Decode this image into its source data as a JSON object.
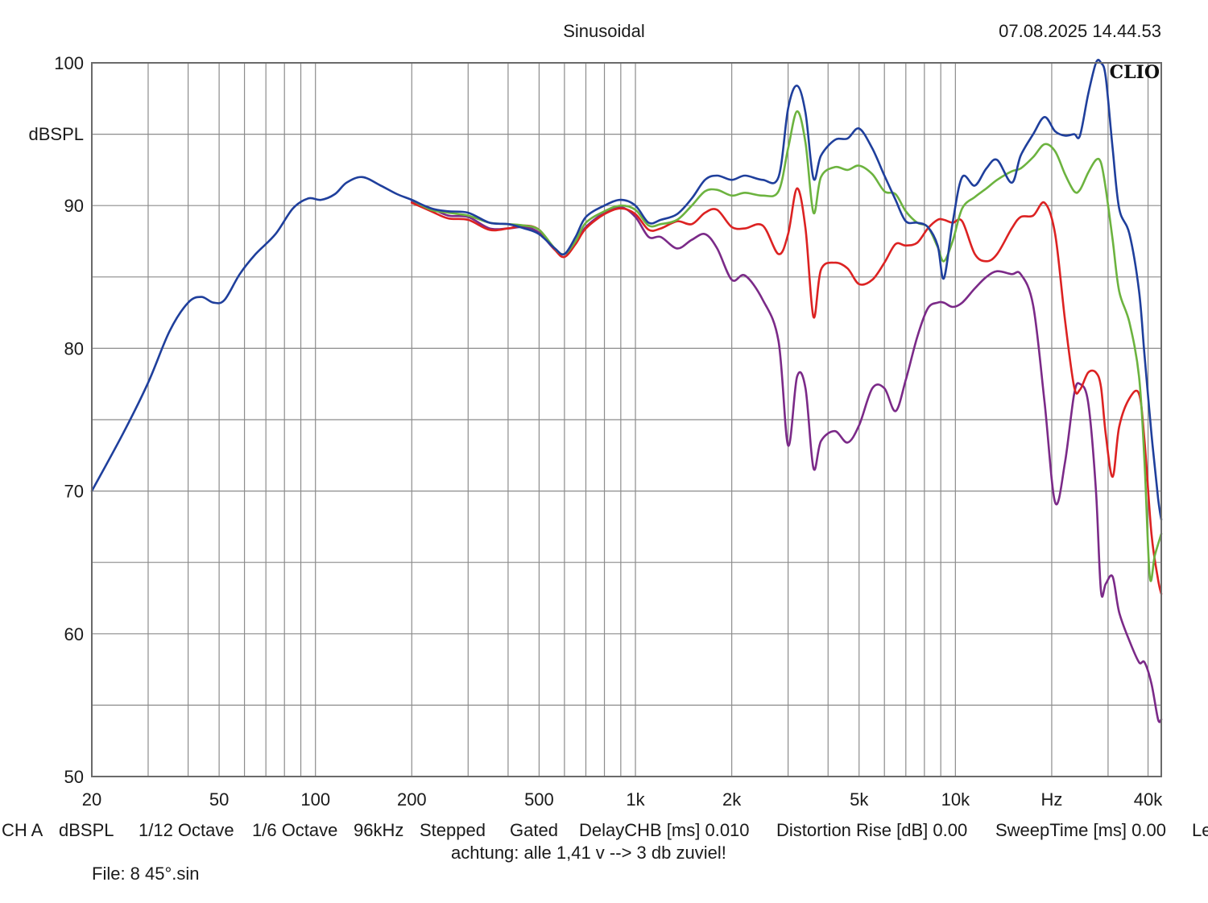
{
  "chart_data": {
    "type": "line",
    "title": "Sinusoidal",
    "timestamp": "07.08.2025 14.44.53",
    "brand": "CLIO",
    "ylabel": "dBSPL",
    "ylim": [
      50,
      100
    ],
    "xlim": [
      20,
      44000
    ],
    "x_scale": "log",
    "y_ticks": [
      {
        "value": 100,
        "label": "100"
      },
      {
        "value": 90,
        "label": "90"
      },
      {
        "value": 80,
        "label": "80"
      },
      {
        "value": 70,
        "label": "70"
      },
      {
        "value": 60,
        "label": "60"
      },
      {
        "value": 50,
        "label": "50"
      }
    ],
    "x_ticks": [
      {
        "value": 20,
        "label": "20"
      },
      {
        "value": 50,
        "label": "50"
      },
      {
        "value": 100,
        "label": "100"
      },
      {
        "value": 200,
        "label": "200"
      },
      {
        "value": 500,
        "label": "500"
      },
      {
        "value": 1000,
        "label": "1k"
      },
      {
        "value": 2000,
        "label": "2k"
      },
      {
        "value": 5000,
        "label": "5k"
      },
      {
        "value": 10000,
        "label": "10k"
      },
      {
        "value": 20000,
        "label": "Hz"
      },
      {
        "value": 40000,
        "label": "40k"
      }
    ],
    "series": [
      {
        "name": "blue",
        "color": "#1f3f9c",
        "points": [
          [
            20,
            70
          ],
          [
            25,
            74
          ],
          [
            30,
            77.6
          ],
          [
            35,
            81.2
          ],
          [
            40,
            83.2
          ],
          [
            44,
            83.6
          ],
          [
            48,
            83.2
          ],
          [
            52,
            83.4
          ],
          [
            58,
            85.2
          ],
          [
            65,
            86.6
          ],
          [
            75,
            88
          ],
          [
            85,
            89.8
          ],
          [
            95,
            90.5
          ],
          [
            104,
            90.4
          ],
          [
            115,
            90.8
          ],
          [
            125,
            91.6
          ],
          [
            140,
            92
          ],
          [
            160,
            91.4
          ],
          [
            180,
            90.8
          ],
          [
            200,
            90.4
          ],
          [
            230,
            89.8
          ],
          [
            260,
            89.6
          ],
          [
            300,
            89.5
          ],
          [
            350,
            88.8
          ],
          [
            400,
            88.7
          ],
          [
            450,
            88.4
          ],
          [
            500,
            88
          ],
          [
            560,
            87
          ],
          [
            600,
            86.6
          ],
          [
            650,
            87.8
          ],
          [
            700,
            89.2
          ],
          [
            800,
            90
          ],
          [
            900,
            90.4
          ],
          [
            1000,
            90
          ],
          [
            1100,
            88.8
          ],
          [
            1200,
            89
          ],
          [
            1350,
            89.4
          ],
          [
            1500,
            90.5
          ],
          [
            1650,
            91.8
          ],
          [
            1800,
            92.1
          ],
          [
            2000,
            91.8
          ],
          [
            2200,
            92.1
          ],
          [
            2500,
            91.8
          ],
          [
            2800,
            92
          ],
          [
            3000,
            96.8
          ],
          [
            3200,
            98.4
          ],
          [
            3400,
            96.5
          ],
          [
            3600,
            91.9
          ],
          [
            3800,
            93.5
          ],
          [
            4200,
            94.6
          ],
          [
            4600,
            94.7
          ],
          [
            5000,
            95.4
          ],
          [
            5500,
            94
          ],
          [
            6000,
            92.1
          ],
          [
            6500,
            90.4
          ],
          [
            7000,
            88.9
          ],
          [
            7600,
            88.8
          ],
          [
            8200,
            88.5
          ],
          [
            8800,
            87.2
          ],
          [
            9200,
            84.9
          ],
          [
            9800,
            88.8
          ],
          [
            10500,
            92
          ],
          [
            11500,
            91.4
          ],
          [
            12500,
            92.6
          ],
          [
            13500,
            93.2
          ],
          [
            15000,
            91.6
          ],
          [
            16000,
            93.5
          ],
          [
            17500,
            95
          ],
          [
            19000,
            96.2
          ],
          [
            20500,
            95.2
          ],
          [
            22000,
            94.9
          ],
          [
            23500,
            95
          ],
          [
            24500,
            94.9
          ],
          [
            26000,
            97.8
          ],
          [
            27500,
            100
          ],
          [
            28500,
            100
          ],
          [
            29500,
            99
          ],
          [
            31000,
            94
          ],
          [
            32500,
            89.8
          ],
          [
            35000,
            88
          ],
          [
            37500,
            84
          ],
          [
            39000,
            79.5
          ],
          [
            41000,
            74
          ],
          [
            43000,
            69.5
          ],
          [
            44000,
            68
          ]
        ]
      },
      {
        "name": "green",
        "color": "#6cb33f",
        "points": [
          [
            200,
            90.4
          ],
          [
            230,
            89.7
          ],
          [
            260,
            89.5
          ],
          [
            300,
            89.3
          ],
          [
            350,
            88.8
          ],
          [
            400,
            88.7
          ],
          [
            450,
            88.6
          ],
          [
            500,
            88.3
          ],
          [
            560,
            87
          ],
          [
            600,
            86.6
          ],
          [
            650,
            87.5
          ],
          [
            700,
            88.8
          ],
          [
            800,
            89.6
          ],
          [
            900,
            90
          ],
          [
            1000,
            89.7
          ],
          [
            1100,
            88.6
          ],
          [
            1200,
            88.7
          ],
          [
            1350,
            89
          ],
          [
            1500,
            90
          ],
          [
            1650,
            91
          ],
          [
            1800,
            91.1
          ],
          [
            2000,
            90.7
          ],
          [
            2200,
            90.9
          ],
          [
            2500,
            90.7
          ],
          [
            2800,
            91
          ],
          [
            3000,
            94
          ],
          [
            3200,
            96.6
          ],
          [
            3400,
            94.4
          ],
          [
            3600,
            89.5
          ],
          [
            3800,
            92
          ],
          [
            4200,
            92.7
          ],
          [
            4600,
            92.5
          ],
          [
            5000,
            92.8
          ],
          [
            5500,
            92.2
          ],
          [
            6000,
            91
          ],
          [
            6500,
            90.8
          ],
          [
            7000,
            89.6
          ],
          [
            7600,
            88.8
          ],
          [
            8200,
            88.5
          ],
          [
            8800,
            87.1
          ],
          [
            9200,
            86.1
          ],
          [
            9800,
            87.5
          ],
          [
            10500,
            89.8
          ],
          [
            11500,
            90.6
          ],
          [
            12500,
            91.2
          ],
          [
            13500,
            91.8
          ],
          [
            15000,
            92.4
          ],
          [
            16000,
            92.6
          ],
          [
            17500,
            93.4
          ],
          [
            19000,
            94.3
          ],
          [
            20500,
            93.8
          ],
          [
            22000,
            92.2
          ],
          [
            23500,
            91
          ],
          [
            24500,
            91.1
          ],
          [
            26000,
            92.3
          ],
          [
            27500,
            93.2
          ],
          [
            28500,
            93
          ],
          [
            29500,
            91.2
          ],
          [
            31000,
            87.6
          ],
          [
            32500,
            84
          ],
          [
            35000,
            81.8
          ],
          [
            37500,
            78
          ],
          [
            39000,
            72
          ],
          [
            40500,
            64
          ],
          [
            42000,
            65.5
          ],
          [
            44000,
            67
          ]
        ]
      },
      {
        "name": "red",
        "color": "#dc2222",
        "points": [
          [
            200,
            90.2
          ],
          [
            230,
            89.6
          ],
          [
            260,
            89.1
          ],
          [
            300,
            89
          ],
          [
            350,
            88.3
          ],
          [
            400,
            88.4
          ],
          [
            450,
            88.6
          ],
          [
            500,
            88.3
          ],
          [
            560,
            86.9
          ],
          [
            600,
            86.4
          ],
          [
            650,
            87.3
          ],
          [
            700,
            88.4
          ],
          [
            800,
            89.4
          ],
          [
            900,
            89.8
          ],
          [
            1000,
            89.4
          ],
          [
            1100,
            88.3
          ],
          [
            1200,
            88.4
          ],
          [
            1350,
            88.9
          ],
          [
            1500,
            88.7
          ],
          [
            1650,
            89.5
          ],
          [
            1800,
            89.7
          ],
          [
            2000,
            88.5
          ],
          [
            2200,
            88.4
          ],
          [
            2500,
            88.6
          ],
          [
            2800,
            86.6
          ],
          [
            3000,
            88
          ],
          [
            3200,
            91.2
          ],
          [
            3400,
            88.4
          ],
          [
            3600,
            82.2
          ],
          [
            3800,
            85.5
          ],
          [
            4200,
            86
          ],
          [
            4600,
            85.6
          ],
          [
            5000,
            84.5
          ],
          [
            5500,
            84.8
          ],
          [
            6000,
            86
          ],
          [
            6500,
            87.3
          ],
          [
            7000,
            87.2
          ],
          [
            7600,
            87.4
          ],
          [
            8200,
            88.4
          ],
          [
            8800,
            89
          ],
          [
            9200,
            89
          ],
          [
            9800,
            88.8
          ],
          [
            10500,
            88.9
          ],
          [
            11500,
            86.6
          ],
          [
            12500,
            86.1
          ],
          [
            13500,
            86.6
          ],
          [
            15000,
            88.4
          ],
          [
            16000,
            89.2
          ],
          [
            17500,
            89.3
          ],
          [
            19000,
            90.2
          ],
          [
            20500,
            88
          ],
          [
            22000,
            82
          ],
          [
            23500,
            77.3
          ],
          [
            24500,
            77.1
          ],
          [
            26000,
            78.3
          ],
          [
            27500,
            78.3
          ],
          [
            28500,
            77.3
          ],
          [
            29500,
            74
          ],
          [
            31000,
            71
          ],
          [
            32500,
            74.5
          ],
          [
            35000,
            76.5
          ],
          [
            37500,
            76.8
          ],
          [
            39000,
            73.5
          ],
          [
            41000,
            67
          ],
          [
            43000,
            63.8
          ],
          [
            44000,
            62.8
          ]
        ]
      },
      {
        "name": "purple",
        "color": "#7b2a88",
        "points": [
          [
            200,
            90.3
          ],
          [
            230,
            89.8
          ],
          [
            260,
            89.3
          ],
          [
            300,
            89.2
          ],
          [
            350,
            88.4
          ],
          [
            400,
            88.4
          ],
          [
            450,
            88.5
          ],
          [
            500,
            88.1
          ],
          [
            560,
            86.9
          ],
          [
            600,
            86.6
          ],
          [
            650,
            87.4
          ],
          [
            700,
            88.5
          ],
          [
            800,
            89.5
          ],
          [
            900,
            89.9
          ],
          [
            1000,
            89.2
          ],
          [
            1100,
            87.8
          ],
          [
            1200,
            87.8
          ],
          [
            1350,
            87
          ],
          [
            1500,
            87.6
          ],
          [
            1650,
            88
          ],
          [
            1800,
            87
          ],
          [
            2000,
            84.8
          ],
          [
            2200,
            85.1
          ],
          [
            2500,
            83.4
          ],
          [
            2800,
            80.5
          ],
          [
            3000,
            73.2
          ],
          [
            3200,
            78
          ],
          [
            3400,
            77.2
          ],
          [
            3600,
            71.6
          ],
          [
            3800,
            73.5
          ],
          [
            4200,
            74.2
          ],
          [
            4600,
            73.4
          ],
          [
            5000,
            74.6
          ],
          [
            5500,
            77.2
          ],
          [
            6000,
            77.2
          ],
          [
            6500,
            75.6
          ],
          [
            7000,
            77.8
          ],
          [
            7600,
            80.8
          ],
          [
            8200,
            82.8
          ],
          [
            8800,
            83.2
          ],
          [
            9200,
            83.2
          ],
          [
            9800,
            82.9
          ],
          [
            10500,
            83.2
          ],
          [
            11500,
            84.2
          ],
          [
            12500,
            85
          ],
          [
            13500,
            85.4
          ],
          [
            15000,
            85.2
          ],
          [
            16000,
            85.2
          ],
          [
            17500,
            83
          ],
          [
            19000,
            76.2
          ],
          [
            20500,
            69.2
          ],
          [
            22000,
            72
          ],
          [
            23500,
            76.8
          ],
          [
            24500,
            77.5
          ],
          [
            26000,
            76.2
          ],
          [
            27500,
            70
          ],
          [
            28500,
            63
          ],
          [
            29500,
            63.5
          ],
          [
            31000,
            64
          ],
          [
            32500,
            61.5
          ],
          [
            35000,
            59.5
          ],
          [
            37500,
            58
          ],
          [
            39000,
            58
          ],
          [
            41000,
            56.5
          ],
          [
            43000,
            54
          ],
          [
            44000,
            54
          ]
        ]
      }
    ]
  },
  "footer": {
    "channel": "CH A",
    "unit": "dBSPL",
    "smoothing_a": "1/12 Octave",
    "smoothing_b": "1/6 Octave",
    "sample_rate": "96kHz",
    "mode_a": "Stepped",
    "mode_b": "Gated",
    "delay": "DelayCHB [ms] 0.010",
    "distortion": "Distortion Rise [dB] 0.00",
    "sweep": "SweepTime [ms] 0.00",
    "truncated": "Le",
    "note": "achtung: alle 1,41 v --> 3 db zuviel!",
    "file": "File: 8 45°.sin"
  }
}
